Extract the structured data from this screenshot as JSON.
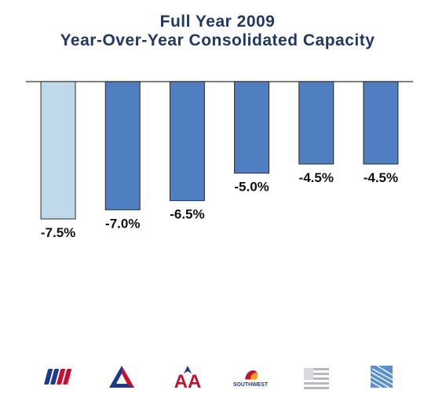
{
  "chart_data": {
    "type": "bar",
    "title": [
      "Full Year 2009",
      "Year-Over-Year Consolidated Capacity"
    ],
    "xlabel": "",
    "ylabel": "",
    "categories": [
      "",
      "",
      "",
      "",
      "",
      ""
    ],
    "values": [
      -7.5,
      -7.0,
      -6.5,
      -5.0,
      -4.5,
      -4.5
    ],
    "data_labels": [
      "-7.5%",
      "-7.0%",
      "-6.5%",
      "-5.0%",
      "-4.5%",
      "-4.5%"
    ],
    "bar_colors": [
      "#BFD9EA",
      "#4F7EC1",
      "#4F7EC1",
      "#4F7EC1",
      "#4F7EC1",
      "#4F7EC1"
    ],
    "ylim": [
      -7.5,
      0
    ],
    "grid": false,
    "legend": "none"
  },
  "logos": {
    "southwest_text": "SOUTHWEST",
    "aa_text": "AA"
  },
  "colors": {
    "title": "#1F3864",
    "baseline": "#555555",
    "label": "#111111"
  }
}
